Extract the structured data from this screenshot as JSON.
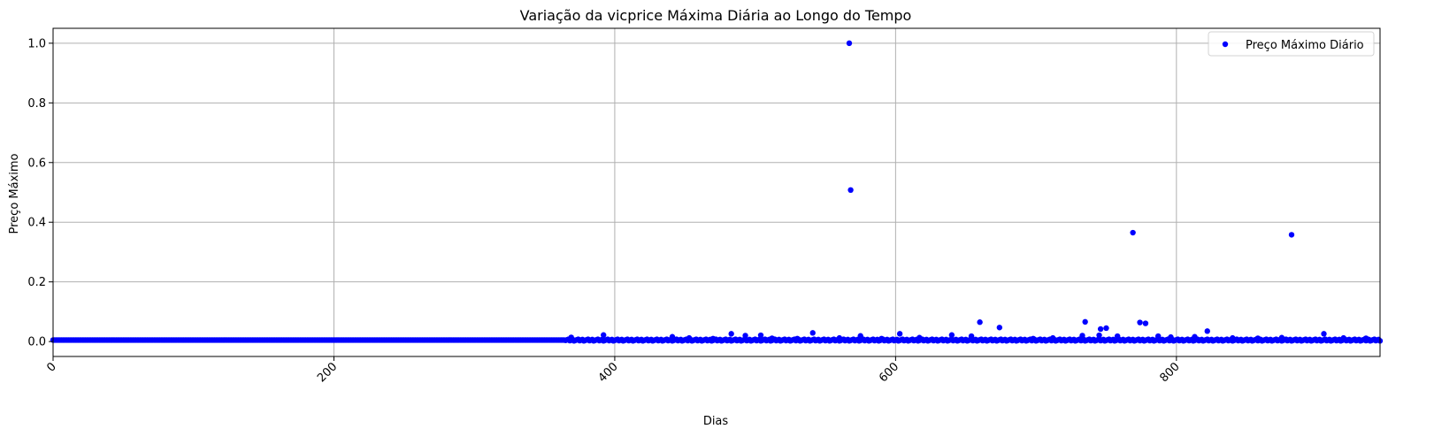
{
  "chart_data": {
    "type": "scatter",
    "title": "Variação da vicprice Máxima Diária ao Longo do Tempo",
    "xlabel": "Dias",
    "ylabel": "Preço Máximo",
    "xlim": [
      0,
      945
    ],
    "ylim": [
      -0.05,
      1.05
    ],
    "xticks": [
      0,
      200,
      400,
      600,
      800
    ],
    "yticks": [
      0.0,
      0.2,
      0.4,
      0.6,
      0.8,
      1.0
    ],
    "xtick_rotation": 45,
    "grid": true,
    "legend": "top-right",
    "series": [
      {
        "name": "Preço Máximo Diário",
        "color": "#0000ff",
        "baseline": {
          "x_range": [
            0,
            945
          ],
          "y": 0.005,
          "note": "dense run of points at ~0.005 for every day"
        },
        "points": [
          [
            567,
            1.0
          ],
          [
            568,
            0.508
          ],
          [
            769,
            0.365
          ],
          [
            882,
            0.358
          ],
          [
            660,
            0.065
          ],
          [
            735,
            0.066
          ],
          [
            774,
            0.064
          ],
          [
            778,
            0.061
          ],
          [
            674,
            0.047
          ],
          [
            750,
            0.045
          ],
          [
            746,
            0.042
          ],
          [
            822,
            0.035
          ],
          [
            541,
            0.029
          ],
          [
            603,
            0.026
          ],
          [
            905,
            0.026
          ],
          [
            483,
            0.026
          ],
          [
            392,
            0.022
          ],
          [
            640,
            0.022
          ],
          [
            575,
            0.019
          ],
          [
            733,
            0.02
          ],
          [
            758,
            0.018
          ],
          [
            493,
            0.02
          ],
          [
            504,
            0.021
          ],
          [
            745,
            0.021
          ],
          [
            369,
            0.014
          ],
          [
            441,
            0.016
          ],
          [
            453,
            0.012
          ],
          [
            470,
            0.01
          ],
          [
            512,
            0.011
          ],
          [
            530,
            0.01
          ],
          [
            560,
            0.012
          ],
          [
            590,
            0.01
          ],
          [
            617,
            0.013
          ],
          [
            654,
            0.018
          ],
          [
            698,
            0.01
          ],
          [
            712,
            0.012
          ],
          [
            787,
            0.018
          ],
          [
            796,
            0.015
          ],
          [
            813,
            0.016
          ],
          [
            840,
            0.012
          ],
          [
            858,
            0.011
          ],
          [
            875,
            0.013
          ],
          [
            919,
            0.012
          ],
          [
            935,
            0.011
          ]
        ]
      }
    ]
  }
}
